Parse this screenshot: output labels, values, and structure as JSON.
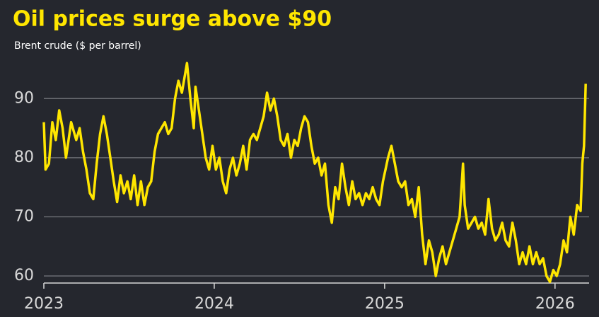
{
  "chart_data": {
    "type": "line",
    "title": "Oil prices surge above $90",
    "subtitle": "Brent crude ($ per barrel)",
    "color": "#ffe600",
    "grid": true,
    "xlim": [
      2023,
      2026.2
    ],
    "xticks": [
      2023,
      2024,
      2025,
      2026
    ],
    "ylim": [
      58.8,
      96.5
    ],
    "yticks": [
      60,
      70,
      80,
      90
    ],
    "x": [
      2023.0,
      2023.01,
      2023.03,
      2023.05,
      2023.07,
      2023.09,
      2023.11,
      2023.13,
      2023.16,
      2023.19,
      2023.21,
      2023.23,
      2023.25,
      2023.27,
      2023.29,
      2023.31,
      2023.33,
      2023.35,
      2023.37,
      2023.39,
      2023.41,
      2023.43,
      2023.45,
      2023.47,
      2023.49,
      2023.51,
      2023.53,
      2023.55,
      2023.57,
      2023.59,
      2023.61,
      2023.63,
      2023.65,
      2023.67,
      2023.69,
      2023.71,
      2023.73,
      2023.75,
      2023.77,
      2023.79,
      2023.81,
      2023.84,
      2023.86,
      2023.88,
      2023.89,
      2023.91,
      2023.93,
      2023.95,
      2023.97,
      2023.99,
      2024.01,
      2024.03,
      2024.05,
      2024.07,
      2024.09,
      2024.11,
      2024.13,
      2024.15,
      2024.17,
      2024.19,
      2024.21,
      2024.23,
      2024.25,
      2024.27,
      2024.29,
      2024.31,
      2024.33,
      2024.35,
      2024.37,
      2024.39,
      2024.41,
      2024.43,
      2024.45,
      2024.47,
      2024.49,
      2024.51,
      2024.53,
      2024.55,
      2024.57,
      2024.59,
      2024.61,
      2024.63,
      2024.65,
      2024.67,
      2024.69,
      2024.71,
      2024.73,
      2024.75,
      2024.77,
      2024.79,
      2024.81,
      2024.83,
      2024.85,
      2024.87,
      2024.89,
      2024.91,
      2024.93,
      2024.95,
      2024.97,
      2024.99,
      2025.02,
      2025.04,
      2025.06,
      2025.08,
      2025.1,
      2025.12,
      2025.14,
      2025.16,
      2025.18,
      2025.2,
      2025.22,
      2025.24,
      2025.26,
      2025.28,
      2025.3,
      2025.32,
      2025.34,
      2025.36,
      2025.38,
      2025.4,
      2025.42,
      2025.44,
      2025.46,
      2025.47,
      2025.49,
      2025.51,
      2025.53,
      2025.55,
      2025.57,
      2025.59,
      2025.61,
      2025.63,
      2025.65,
      2025.67,
      2025.69,
      2025.71,
      2025.73,
      2025.75,
      2025.77,
      2025.79,
      2025.81,
      2025.83,
      2025.85,
      2025.87,
      2025.89,
      2025.91,
      2025.93,
      2025.95,
      2025.97,
      2025.99,
      2026.01,
      2026.03,
      2026.05,
      2026.07,
      2026.09,
      2026.11,
      2026.13,
      2026.15,
      2026.16,
      2026.17,
      2026.18
    ],
    "values": [
      86,
      78,
      79,
      86,
      83,
      88,
      85,
      80,
      86,
      83,
      85,
      81,
      78,
      74,
      73,
      79,
      84,
      87,
      84,
      80,
      76,
      72.5,
      77,
      74,
      76,
      73,
      77,
      72,
      76,
      72,
      75,
      76,
      81,
      84,
      85,
      86,
      84,
      85,
      90,
      93,
      91,
      96,
      90,
      85,
      92,
      88,
      84,
      80,
      78,
      82,
      78,
      80,
      76,
      74,
      78,
      80,
      77,
      79,
      82,
      78,
      83,
      84,
      83,
      85,
      87,
      91,
      88,
      90,
      87,
      83,
      82,
      84,
      80,
      83,
      82,
      85,
      87,
      86,
      82,
      79,
      80,
      77,
      79,
      72,
      69,
      75,
      73,
      79,
      75,
      72,
      76,
      73,
      74,
      72,
      74,
      73,
      75,
      73,
      72,
      76,
      80,
      82,
      79,
      76,
      75,
      76,
      72,
      73,
      70,
      75,
      67,
      62,
      66,
      64,
      60,
      63,
      65,
      62,
      64,
      66,
      68,
      70,
      79,
      72,
      68,
      69,
      70,
      68,
      69,
      67,
      73,
      68,
      66,
      67,
      69,
      66,
      65,
      69,
      66,
      62,
      64,
      62,
      65,
      62,
      64,
      62,
      63,
      60,
      59,
      61,
      60,
      62,
      66,
      64,
      70,
      67,
      72,
      71,
      79,
      82,
      92.5
    ]
  }
}
